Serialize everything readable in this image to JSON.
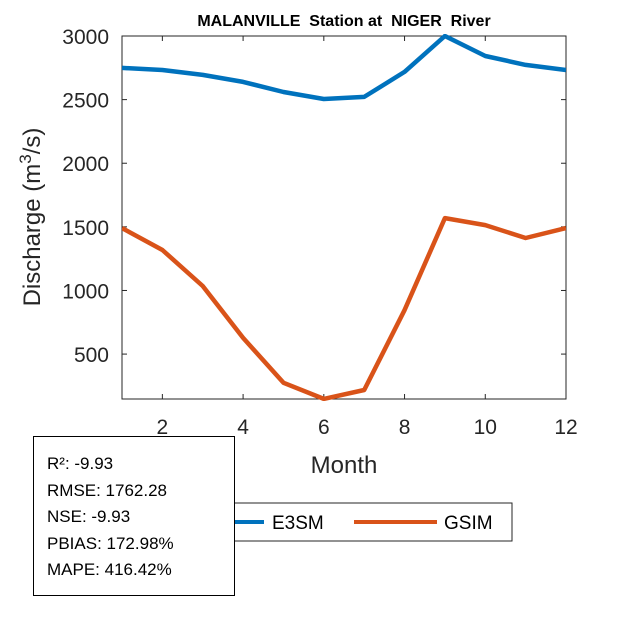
{
  "chart_data": {
    "type": "line",
    "title": "MALANVILLE  Station at  NIGER  River",
    "xlabel": "Month",
    "ylabel": "Discharge (m³/s)",
    "ylabel_parts": {
      "main": "Discharge (m",
      "sup": "3",
      "tail": "/s)"
    },
    "xlim": [
      1,
      12
    ],
    "ylim": [
      147,
      3000
    ],
    "xticks": [
      2,
      4,
      6,
      8,
      10,
      12
    ],
    "yticks": [
      500,
      1000,
      1500,
      2000,
      2500,
      3000
    ],
    "xtick_labels": [
      "2",
      "4",
      "6",
      "8",
      "10",
      "12"
    ],
    "ytick_labels": [
      "500",
      "1000",
      "1500",
      "2000",
      "2500",
      "3000"
    ],
    "grid": false,
    "x": [
      1,
      2,
      3,
      4,
      5,
      6,
      7,
      8,
      9,
      10,
      11,
      12
    ],
    "series": [
      {
        "name": "E3SM",
        "color": "#0072BD",
        "values": [
          2749,
          2733,
          2694,
          2639,
          2560,
          2505,
          2521,
          2718,
          3000,
          2843,
          2773,
          2733
        ]
      },
      {
        "name": "GSIM",
        "color": "#D95319",
        "values": [
          1490,
          1318,
          1035,
          627,
          274,
          148,
          218,
          845,
          1569,
          1514,
          1412,
          1490
        ]
      }
    ],
    "legend": {
      "placement": "bottom-outside",
      "orientation": "horizontal"
    }
  },
  "stats": [
    {
      "label": "R²",
      "value": "-9.93"
    },
    {
      "label": "RMSE",
      "value": "1762.28"
    },
    {
      "label": "NSE",
      "value": "-9.93"
    },
    {
      "label": "PBIAS",
      "value": "172.98%"
    },
    {
      "label": "MAPE",
      "value": "416.42%"
    }
  ],
  "stats_text": [
    "R²: -9.93",
    "RMSE: 1762.28",
    "NSE: -9.93",
    "PBIAS: 172.98%",
    "MAPE: 416.42%"
  ]
}
